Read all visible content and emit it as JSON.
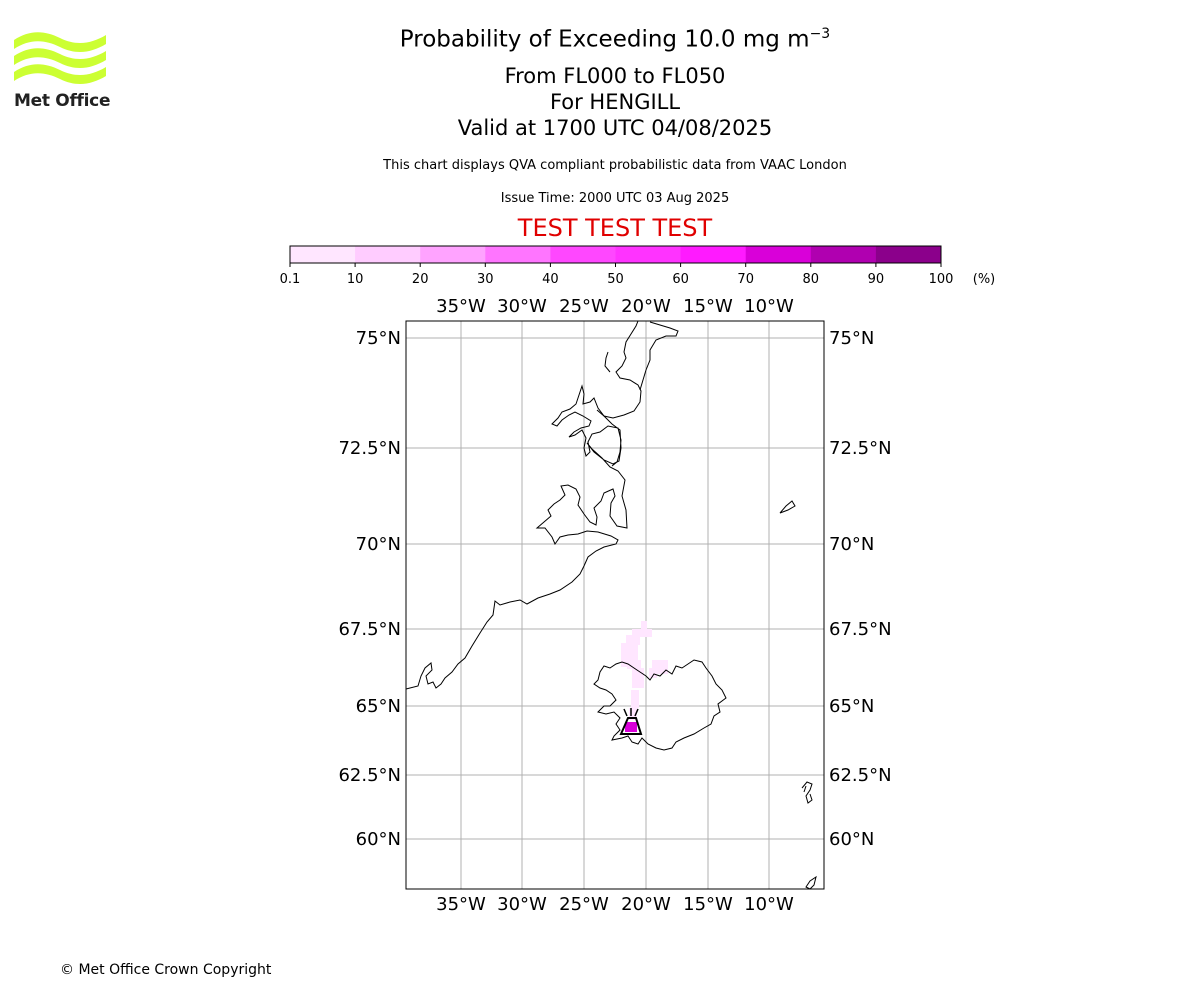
{
  "header": {
    "title_main": "Probability of Exceeding 10.0 mg m",
    "title_sup": "−3",
    "line2": "From FL000 to FL050",
    "line3": "For HENGILL",
    "line4": "Valid at 1700 UTC 04/08/2025",
    "subtitle": "This chart displays QVA compliant probabilistic data from VAAC London",
    "issue_time": "Issue Time: 2000 UTC 03 Aug 2025",
    "test_banner": "TEST TEST TEST"
  },
  "logo": {
    "text": "Met Office",
    "color": "#ccff33"
  },
  "colorbar": {
    "ticks": [
      "0.1",
      "10",
      "20",
      "30",
      "40",
      "50",
      "60",
      "70",
      "80",
      "90",
      "100"
    ],
    "unit": "(%)",
    "colors": [
      "#ffe6ff",
      "#ffccff",
      "#ffa3ff",
      "#ff75ff",
      "#ff47ff",
      "#ff33ff",
      "#ff1aff",
      "#d900d9",
      "#b000b0",
      "#8b008b",
      "#660066"
    ]
  },
  "map": {
    "lon_labels": [
      "35°W",
      "30°W",
      "25°W",
      "20°W",
      "15°W",
      "10°W"
    ],
    "lat_labels": [
      "75°N",
      "72.5°N",
      "70°N",
      "67.5°N",
      "65°N",
      "62.5°N",
      "60°N"
    ],
    "volcano": "HENGILL",
    "gridline_color": "#b0b0b0",
    "plume_color": "#ffe6ff"
  },
  "footer": {
    "copyright": "© Met Office Crown Copyright"
  }
}
